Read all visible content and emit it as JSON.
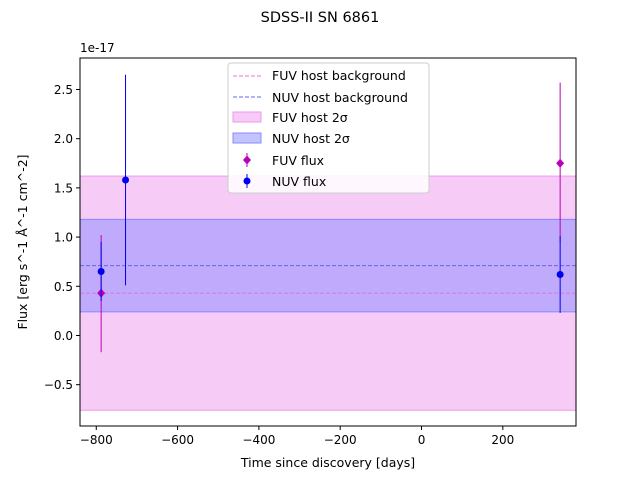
{
  "chart_data": {
    "type": "scatter",
    "title": "SDSS-II SN 6861",
    "xlabel": "Time since discovery [days]",
    "ylabel": "Flux [erg s^-1 Å^-1 cm^-2]",
    "y_offset_label": "1e-17",
    "xlim": [
      -840,
      380
    ],
    "ylim": [
      -0.92,
      2.82
    ],
    "x_ticks": [
      -800,
      -600,
      -400,
      -200,
      0,
      200
    ],
    "x_tick_labels": [
      "−800",
      "−600",
      "−400",
      "−200",
      "0",
      "200"
    ],
    "y_ticks": [
      -0.5,
      0.0,
      0.5,
      1.0,
      1.5,
      2.0,
      2.5
    ],
    "y_tick_labels": [
      "−0.5",
      "0.0",
      "0.5",
      "1.0",
      "1.5",
      "2.0",
      "2.5"
    ],
    "grid": false,
    "legend_position": "upper-center",
    "host": {
      "fuv": {
        "level": 0.43,
        "band": [
          -0.76,
          1.62
        ],
        "line_color": "#dd77dd",
        "band_color": "#ee99ee",
        "label_line": "FUV host background",
        "label_band": "FUV host 2σ"
      },
      "nuv": {
        "level": 0.71,
        "band": [
          0.24,
          1.18
        ],
        "line_color": "#6666ee",
        "band_color": "#8888ff",
        "label_line": "NUV host background",
        "label_band": "NUV host 2σ"
      }
    },
    "series": [
      {
        "name": "FUV flux",
        "color": "#bb00bb",
        "marker": "diamond",
        "points": [
          {
            "x": -788,
            "y": 0.43,
            "yerr": [
              0.6,
              0.59
            ]
          },
          {
            "x": 341,
            "y": 1.75,
            "yerr": [
              0.8,
              0.82
            ]
          }
        ]
      },
      {
        "name": "NUV flux",
        "color": "#0000ee",
        "marker": "circle",
        "points": [
          {
            "x": -788,
            "y": 0.65,
            "yerr": [
              0.3,
              0.3
            ]
          },
          {
            "x": -728,
            "y": 1.58,
            "yerr": [
              1.07,
              1.07
            ]
          },
          {
            "x": 341,
            "y": 0.62,
            "yerr": [
              0.39,
              0.39
            ]
          }
        ]
      }
    ]
  }
}
